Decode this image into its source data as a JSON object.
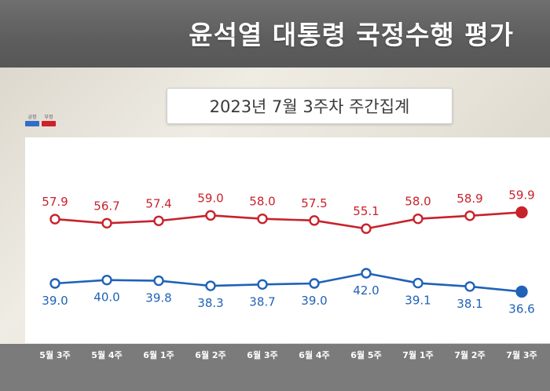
{
  "header": {
    "title": "윤석열 대통령 국정수행 평가",
    "subtitle": "2023년 7월 3주차 주간집계"
  },
  "legend": {
    "items": [
      {
        "label": "긍정",
        "color": "#2f6fc8"
      },
      {
        "label": "부정",
        "color": "#d0202a"
      }
    ]
  },
  "chart_data": {
    "type": "line",
    "title": "윤석열 대통령 국정수행 평가",
    "subtitle": "2023년 7월 3주차 주간집계",
    "categories": [
      "5월 3주",
      "5월 4주",
      "6월 1주",
      "6월 2주",
      "6월 3주",
      "6월 4주",
      "6월 5주",
      "7월 1주",
      "7월 2주",
      "7월 3주"
    ],
    "series": [
      {
        "name": "부정",
        "color": "#c8222b",
        "values": [
          57.9,
          56.7,
          57.4,
          59.0,
          58.0,
          57.5,
          55.1,
          58.0,
          58.9,
          59.9
        ]
      },
      {
        "name": "긍정",
        "color": "#1f62b8",
        "values": [
          39.0,
          40.0,
          39.8,
          38.3,
          38.7,
          39.0,
          42.0,
          39.1,
          38.1,
          36.6
        ]
      }
    ],
    "label_decimals": 1,
    "grid": false,
    "legend_position": "top-left"
  }
}
